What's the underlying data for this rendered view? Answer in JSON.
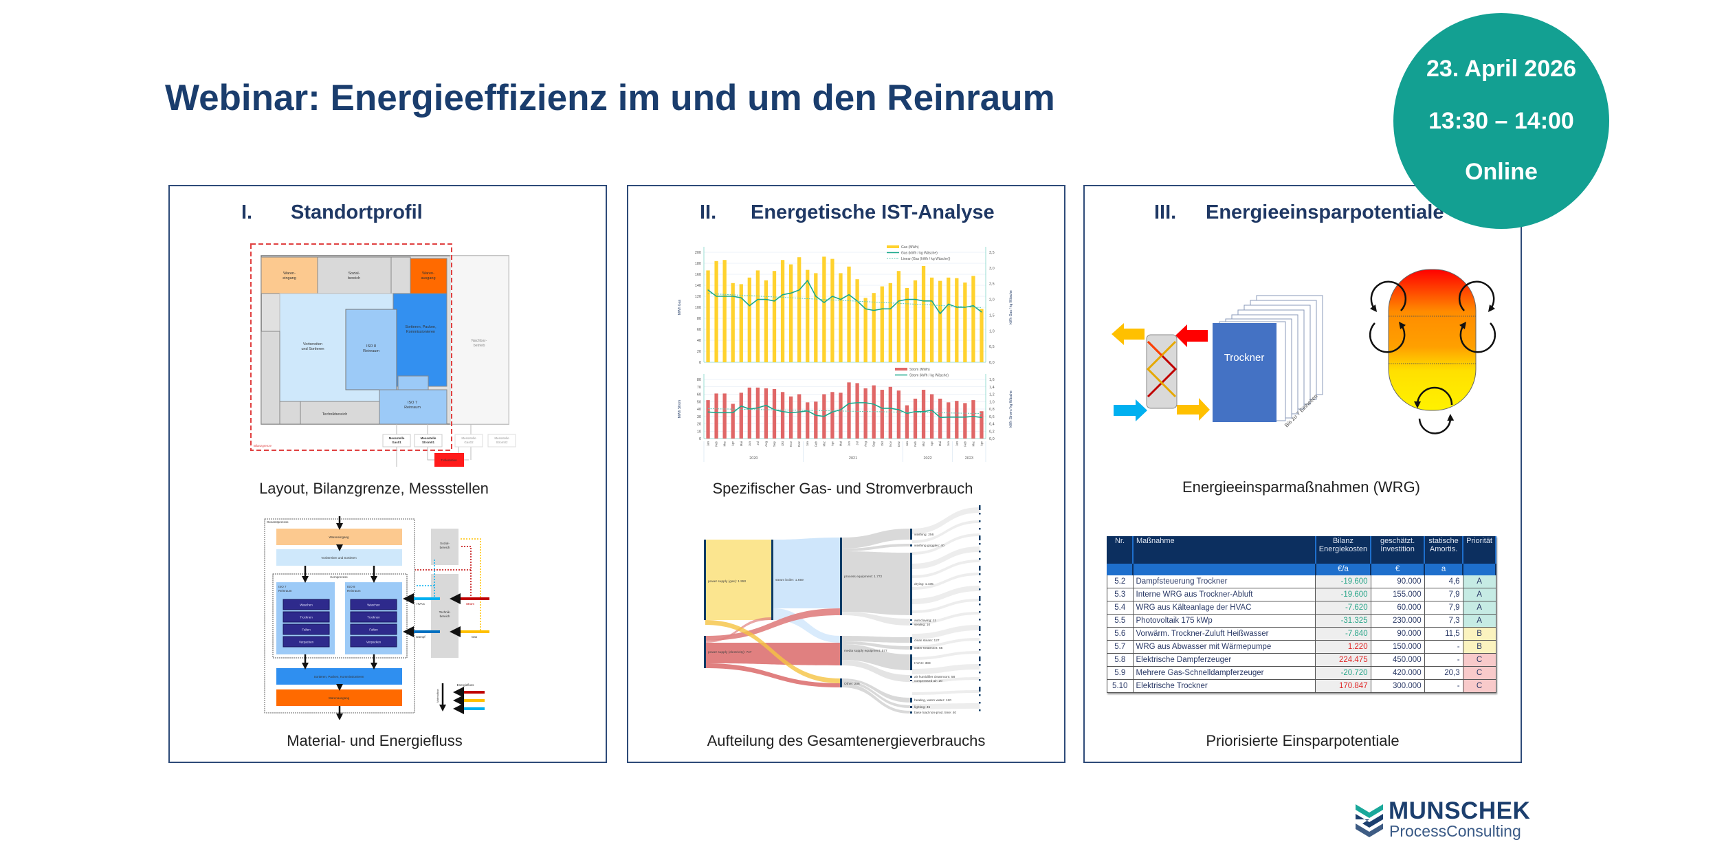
{
  "header": {
    "title": "Webinar: Energieeffizienz im und um den Reinraum",
    "date": "23. April 2026",
    "time": "13:30 – 14:00",
    "format": "Online"
  },
  "colors": {
    "brand_navy": "#1a3d6d",
    "badge_teal": "#13a092"
  },
  "panels": [
    {
      "numeral": "I.",
      "heading": "Standortprofil",
      "caption_top": "Layout, Bilanzgrenze, Messstellen",
      "caption_bottom": "Material- und Energiefluss"
    },
    {
      "numeral": "II.",
      "heading": "Energetische IST-Analyse",
      "caption_top": "Spezifischer Gas- und Stromverbrauch",
      "caption_bottom": "Aufteilung des Gesamtenergieverbrauchs"
    },
    {
      "numeral": "III.",
      "heading": "Energieeinsparpotentiale",
      "caption_top": "Energieeinsparmaßnahmen (WRG)",
      "caption_bottom": "Priorisierte Einsparpotentiale"
    }
  ],
  "floorplan": {
    "wareneingang": [
      "Waren-",
      "eingang"
    ],
    "sozialbereich": [
      "Sozial-",
      "bereich"
    ],
    "warenausgang": [
      "Waren-",
      "ausgang"
    ],
    "vorbereiten": [
      "Vorbereiten",
      "und Sortieren"
    ],
    "iso8": [
      "ISO 8",
      "Reinraum"
    ],
    "sortieren": [
      "Sortieren, Packen,",
      "Kommissionieren"
    ],
    "iso7": [
      "ISO 7",
      "Reinraum"
    ],
    "technik": "Technikbereich",
    "nachbar": [
      "Nachbar-",
      "betrieb"
    ],
    "meters": [
      [
        "Messstelle",
        "Gas01"
      ],
      [
        "Messstelle",
        "Strom01"
      ],
      [
        "Messstelle",
        "Gas02"
      ],
      [
        "Messstelle",
        "Strom02"
      ]
    ],
    "trafo": "Trafostation",
    "bilanzgrenze": "Bilanzgrenze"
  },
  "flow": {
    "gesamtprozess": "Gesamtprozess",
    "wareneingang": "Wareneingang",
    "vorbereiten": "Vorbereiten und Sortieren",
    "kernprozess": "Kernprozess",
    "iso7": [
      "ISO 7",
      "Reinraum"
    ],
    "iso8": [
      "ISO 8",
      "Reinraum"
    ],
    "steps": [
      "Waschen",
      "Trocknen",
      "Falten",
      "Verpacken"
    ],
    "sortieren": "Sortieren, Packen, Kommissionieren",
    "warenausgang": "Warenausgang",
    "sozial": [
      "Sozial-",
      "bereich"
    ],
    "technik": [
      "Technik-",
      "bereich"
    ],
    "hvac": "HVAC",
    "dampf": "Dampf",
    "strom": "Strom",
    "gas": "Gas",
    "legend_energy": "Energiefluss",
    "legend_material": "Materialfluss"
  },
  "chart_data": [
    {
      "type": "bar",
      "title": "Gas",
      "categories": [
        "Jan",
        "Feb",
        "Mrz",
        "Apr",
        "Mai",
        "Jun",
        "Jul",
        "Aug",
        "Sep",
        "Okt",
        "Nov",
        "Dez",
        "Jan",
        "Feb",
        "Mrz",
        "Apr",
        "Mai",
        "Jun",
        "Jul",
        "Aug",
        "Sep",
        "Okt",
        "Nov",
        "Dez",
        "Jan",
        "Feb",
        "Mrz",
        "Apr",
        "Mai",
        "Jun",
        "Jan",
        "Feb",
        "Mrz",
        "Apr"
      ],
      "years": [
        {
          "label": "2020",
          "count": 12
        },
        {
          "label": "2021",
          "count": 12
        },
        {
          "label": "2022",
          "count": 6
        },
        {
          "label": "2023",
          "count": 4
        }
      ],
      "ylabel": "MWh Gas",
      "ylim": [
        0,
        200
      ],
      "yticks": [
        0,
        20,
        40,
        60,
        80,
        100,
        120,
        140,
        160,
        180,
        200
      ],
      "y2label": "kWh Gas / kg Wäsche",
      "y2lim": [
        0,
        3.5
      ],
      "y2ticks": [
        "0,0",
        "0,5",
        "1,0",
        "1,5",
        "2,0",
        "2,5",
        "3,0",
        "3,5"
      ],
      "grid": true,
      "legend": "top-right",
      "series": [
        {
          "name": "Gas (MWh)",
          "kind": "bar",
          "color": "#ffd22e",
          "values": [
            167,
            184,
            186,
            144,
            142,
            154,
            167,
            149,
            166,
            186,
            178,
            191,
            168,
            162,
            192,
            188,
            162,
            174,
            151,
            117,
            126,
            138,
            144,
            166,
            135,
            149,
            175,
            154,
            148,
            154,
            153,
            145,
            157,
            97
          ]
        },
        {
          "name": "Gas (kWh / kg Wäsche)",
          "kind": "line",
          "axis": "right",
          "color": "#1aa88c",
          "values": [
            2.3,
            2.1,
            2.1,
            2.1,
            2.05,
            1.8,
            2.0,
            2.0,
            1.95,
            2.15,
            2.2,
            2.3,
            2.6,
            2.1,
            1.9,
            2.1,
            2.0,
            2.15,
            1.95,
            1.7,
            1.65,
            1.7,
            1.7,
            1.95,
            2.0,
            2.0,
            1.95,
            1.95,
            1.55,
            1.85,
            1.75,
            1.75,
            1.8,
            1.6
          ]
        },
        {
          "name": "Linear (Gas (kWh / kg Wäsche))",
          "kind": "trend",
          "axis": "right",
          "color": "#5ccab4"
        }
      ]
    },
    {
      "type": "bar",
      "title": "Strom",
      "ylabel": "MWh Strom",
      "ylim": [
        0,
        80
      ],
      "yticks": [
        0,
        10,
        20,
        30,
        40,
        50,
        60,
        70,
        80
      ],
      "y2label": "kWh Strom / kg Wäsche",
      "y2lim": [
        0,
        1.6
      ],
      "y2ticks": [
        "0,0",
        "0,2",
        "0,4",
        "0,6",
        "0,8",
        "1,0",
        "1,2",
        "1,4",
        "1,6"
      ],
      "grid": true,
      "legend": "top-right",
      "series": [
        {
          "name": "Strom (MWh)",
          "kind": "bar",
          "color": "#e06767",
          "values": [
            52,
            61,
            61,
            47,
            62,
            69,
            69,
            68,
            67,
            63,
            57,
            60,
            49,
            50,
            60,
            63,
            62,
            76,
            75,
            68,
            72,
            66,
            70,
            65,
            45,
            54,
            66,
            60,
            54,
            49,
            51,
            48,
            52,
            37
          ]
        },
        {
          "name": "Strom (kWh / kg Wäsche)",
          "kind": "line",
          "axis": "right",
          "color": "#1aa88c",
          "values": [
            0.72,
            0.7,
            0.7,
            0.7,
            0.88,
            0.8,
            0.83,
            0.9,
            0.78,
            0.73,
            0.7,
            0.72,
            0.75,
            0.63,
            0.6,
            0.72,
            0.78,
            0.95,
            0.97,
            0.97,
            0.93,
            0.82,
            0.82,
            0.78,
            0.68,
            0.73,
            0.73,
            0.77,
            0.57,
            0.58,
            0.58,
            0.58,
            0.6,
            0.57
          ]
        },
        {
          "name": "Linear",
          "kind": "trend",
          "axis": "right",
          "color": "#5ccab4"
        }
      ]
    }
  ],
  "sankey": {
    "nodes": {
      "gas": "power supply (gas): 1.950",
      "electricity": "power supply (electricity): 747",
      "steam": "steam boiler: 1.659",
      "process": "process equipment: 1.772",
      "media": "media supply equipment: 577",
      "other": "Other: 206",
      "washing": "washing: 256",
      "goggles": "washing goggles: 40",
      "drying": "drying: 1.435",
      "autoclaving": "autoclaving: 11",
      "sealing": "sealing: 10",
      "cleansteam": "clean steam: 127",
      "water": "water treatment: 65",
      "hvac": "HVAC: 383",
      "humidifier": "air humidifier cleanroom: 58",
      "compressed": "compressed air: 20",
      "heating": "heating, warm water: 120",
      "lighting": "lighting: 45",
      "baseload": "base load non-prod. time: 40"
    }
  },
  "wrg": {
    "dryer_label": "Trockner",
    "units_note": "Bis zu 7 Einheiten"
  },
  "table": {
    "headers": [
      "Nr.",
      "Maßnahme",
      "Bilanz Energiekosten",
      "geschätzt. Investition",
      "statische Amortis.",
      "Priorität"
    ],
    "units": [
      "",
      "",
      "€/a",
      "€",
      "a",
      ""
    ],
    "rows": [
      {
        "nr": "5.2",
        "measure": "Dampfsteuerung Trockner",
        "balance": "-19.600",
        "invest": "90.000",
        "payback": "4,6",
        "priority": "A"
      },
      {
        "nr": "5.3",
        "measure": "Interne WRG aus Trockner-Abluft",
        "balance": "-19.600",
        "invest": "155.000",
        "payback": "7,9",
        "priority": "A"
      },
      {
        "nr": "5.4",
        "measure": "WRG aus Kälteanlage der HVAC",
        "balance": "-7.620",
        "invest": "60.000",
        "payback": "7,9",
        "priority": "A"
      },
      {
        "nr": "5.5",
        "measure": "Photovoltaik 175 kWp",
        "balance": "-31.325",
        "invest": "230.000",
        "payback": "7,3",
        "priority": "A"
      },
      {
        "nr": "5.6",
        "measure": "Vorwärm. Trockner-Zuluft Heißwasser",
        "balance": "-7.840",
        "invest": "90.000",
        "payback": "11,5",
        "priority": "B"
      },
      {
        "nr": "5.7",
        "measure": "WRG aus Abwasser mit Wärmepumpe",
        "balance": "1.220",
        "invest": "150.000",
        "payback": "-",
        "priority": "B"
      },
      {
        "nr": "5.8",
        "measure": "Elektrische Dampferzeuger",
        "balance": "224.475",
        "invest": "450.000",
        "payback": "-",
        "priority": "C"
      },
      {
        "nr": "5.9",
        "measure": "Mehrere Gas-Schnelldampferzeuger",
        "balance": "-20.720",
        "invest": "420.000",
        "payback": "20,3",
        "priority": "C"
      },
      {
        "nr": "5.10",
        "measure": "Elektrische Trockner",
        "balance": "170.847",
        "invest": "300.000",
        "payback": "-",
        "priority": "C"
      }
    ]
  },
  "logo": {
    "name": "MUNSCHEK",
    "tagline": "ProcessConsulting"
  }
}
